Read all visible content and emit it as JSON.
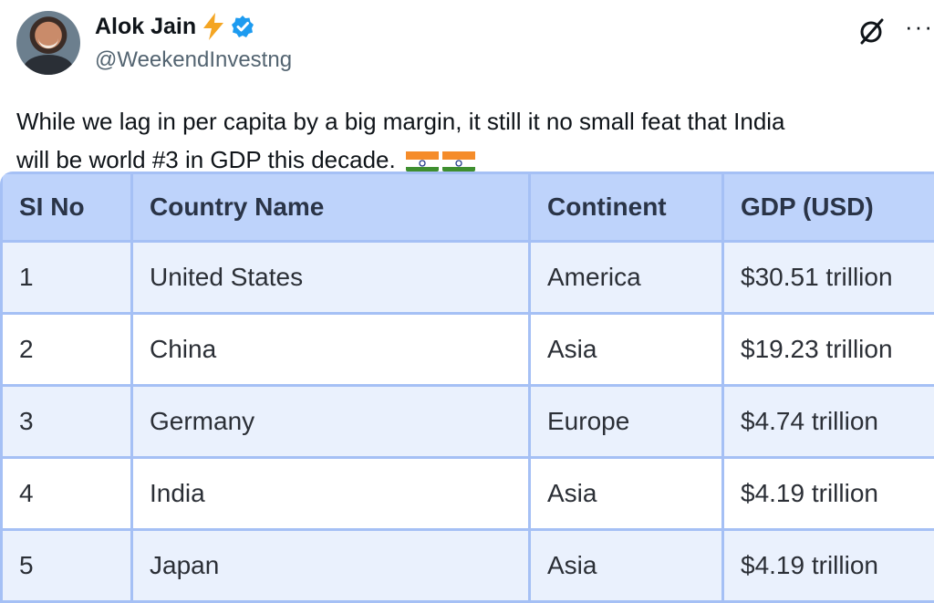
{
  "author": {
    "name": "Alok Jain",
    "handle": "@WeekendInvestng"
  },
  "tweet": {
    "line1": "While we lag in per capita by a big margin, it still it no small feat that India",
    "line2": "will be world #3 in GDP this decade."
  },
  "icons": [
    "lightning-icon",
    "verified-badge-icon",
    "grok-icon",
    "more-icon",
    "india-flag-icon"
  ],
  "colors": {
    "header_bg": "#bed3fb",
    "odd_row_bg": "#eaf1fd",
    "border": "#a5c0f5",
    "verified": "#1d9bf0",
    "bolt": "#f4a523"
  },
  "table": {
    "headers": [
      "SI No",
      "Country Name",
      "Continent",
      "GDP (USD)"
    ],
    "rows": [
      [
        "1",
        "United States",
        "America",
        "$30.51 trillion"
      ],
      [
        "2",
        "China",
        "Asia",
        "$19.23 trillion"
      ],
      [
        "3",
        "Germany",
        "Europe",
        "$4.74 trillion"
      ],
      [
        "4",
        "India",
        "Asia",
        "$4.19 trillion"
      ],
      [
        "5",
        "Japan",
        "Asia",
        "$4.19 trillion"
      ]
    ]
  }
}
